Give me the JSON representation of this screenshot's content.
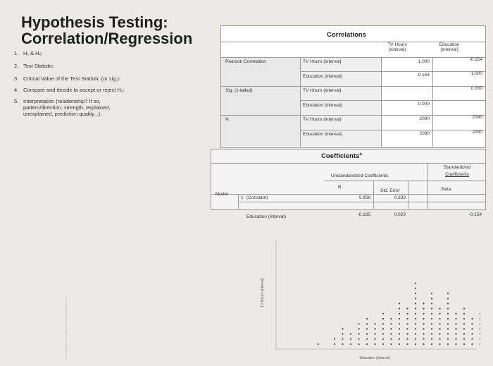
{
  "title": {
    "line1": "Hypothesis Testing:",
    "line2": "Correlation/Regression"
  },
  "questions": [
    {
      "n": "1.",
      "text": "H₁ & H₀:"
    },
    {
      "n": "2.",
      "text": "Test Statistic:"
    },
    {
      "n": "3.",
      "text": "Critical Value of the Test Statistic (or sig.):"
    },
    {
      "n": "4.",
      "text": "Compare and decide to accept or reject H₀:"
    },
    {
      "n": "5.",
      "text": "Interpretation (relationship? If so, pattern/direction, strength, explained, unexplained, prediction quality...):"
    }
  ],
  "correlations": {
    "title": "Correlations",
    "col1": "TV Hours (interval)",
    "col2": "Education (interval)",
    "row_pearson": "Pearson Correlation",
    "row_sig": "Sig. (1-tailed)",
    "row_n": "N",
    "var_tv": "TV Hours (interval)",
    "var_edu": "Education (interval)",
    "p_tv_tv": "1.000",
    "p_tv_edu": "-0.154",
    "p_edu_tv": "-0.154",
    "p_edu_edu": "1.000",
    "s_tv_tv": "",
    "s_tv_edu": "0.000",
    "s_edu_tv": "0.000",
    "s_edu_edu": "",
    "n_tv_tv": "2090",
    "n_tv_edu": "2090",
    "n_edu_tv": "2090",
    "n_edu_edu": "2090",
    "dot": "."
  },
  "coefficients": {
    "title": "Coefficients",
    "sup": "a",
    "unstd": "Unstandardized Coefficients",
    "std_line1": "Standardized",
    "std_line2": "Coefficients",
    "b": "B",
    "se": "Std. Error",
    "beta": "Beta",
    "model": "Model",
    "row1_num": "1",
    "row1_label": "(Constant)",
    "row1_b": "5.956",
    "row1_se": "0.333",
    "row1_beta": "",
    "row2_label": "Education (interval)",
    "row2_b": "-0.165",
    "row2_se": "0.023",
    "row2_beta": "-0.154"
  },
  "scatter": {
    "ylabel": "TV Hours (interval)",
    "xlabel": "Education (interval)",
    "columns": [
      {
        "x": 0,
        "count": 1
      },
      {
        "x": 2,
        "count": 2
      },
      {
        "x": 3,
        "count": 4
      },
      {
        "x": 4,
        "count": 3
      },
      {
        "x": 5,
        "count": 5
      },
      {
        "x": 6,
        "count": 6
      },
      {
        "x": 7,
        "count": 5
      },
      {
        "x": 8,
        "count": 7
      },
      {
        "x": 9,
        "count": 6
      },
      {
        "x": 10,
        "count": 9
      },
      {
        "x": 11,
        "count": 8
      },
      {
        "x": 12,
        "count": 13
      },
      {
        "x": 13,
        "count": 9
      },
      {
        "x": 14,
        "count": 11
      },
      {
        "x": 15,
        "count": 8
      },
      {
        "x": 16,
        "count": 11
      },
      {
        "x": 17,
        "count": 7
      },
      {
        "x": 18,
        "count": 8
      },
      {
        "x": 19,
        "count": 6
      },
      {
        "x": 20,
        "count": 7
      }
    ],
    "dot_color": "#444444"
  }
}
